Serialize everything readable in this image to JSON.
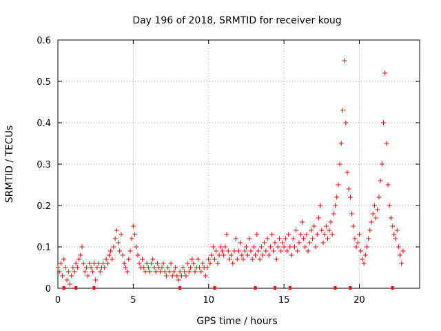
{
  "chart_data": {
    "type": "scatter",
    "title": "Day 196 of 2018, SRMTID for receiver koug",
    "xlabel": "GPS time / hours",
    "ylabel": "SRMTID / TECUs",
    "xlim": [
      0,
      24
    ],
    "ylim": [
      0,
      0.6
    ],
    "xticks": [
      0,
      5,
      10,
      15,
      20
    ],
    "yticks": [
      0,
      0.1,
      0.2,
      0.3,
      0.4,
      0.5,
      0.6
    ],
    "xtick_labels": [
      "0",
      "5",
      "10",
      "15",
      "20"
    ],
    "ytick_labels": [
      "0",
      "0.1",
      "0.2",
      "0.3",
      "0.4",
      "0.5",
      "0.6"
    ],
    "grid": true,
    "marker": "+",
    "color": "#ff0000",
    "series": [
      {
        "name": "SRMTID",
        "points": [
          [
            0.0,
            0.05
          ],
          [
            0.1,
            0.04
          ],
          [
            0.2,
            0.06
          ],
          [
            0.3,
            0.03
          ],
          [
            0.4,
            0.07
          ],
          [
            0.5,
            0.05
          ],
          [
            0.6,
            0.02
          ],
          [
            0.7,
            0.04
          ],
          [
            0.8,
            0.01
          ],
          [
            0.9,
            0.03
          ],
          [
            1.0,
            0.05
          ],
          [
            1.1,
            0.04
          ],
          [
            1.2,
            0.06
          ],
          [
            1.3,
            0.05
          ],
          [
            1.4,
            0.07
          ],
          [
            1.5,
            0.08
          ],
          [
            1.6,
            0.1
          ],
          [
            1.7,
            0.06
          ],
          [
            1.8,
            0.04
          ],
          [
            1.9,
            0.05
          ],
          [
            2.0,
            0.03
          ],
          [
            2.1,
            0.06
          ],
          [
            2.2,
            0.05
          ],
          [
            2.3,
            0.04
          ],
          [
            2.4,
            0.06
          ],
          [
            2.5,
            0.02
          ],
          [
            2.6,
            0.05
          ],
          [
            2.7,
            0.06
          ],
          [
            2.8,
            0.04
          ],
          [
            2.9,
            0.05
          ],
          [
            3.0,
            0.06
          ],
          [
            3.1,
            0.05
          ],
          [
            3.2,
            0.07
          ],
          [
            3.3,
            0.06
          ],
          [
            3.4,
            0.08
          ],
          [
            3.5,
            0.09
          ],
          [
            3.6,
            0.07
          ],
          [
            3.7,
            0.1
          ],
          [
            3.8,
            0.12
          ],
          [
            3.9,
            0.14
          ],
          [
            4.0,
            0.11
          ],
          [
            4.1,
            0.09
          ],
          [
            4.2,
            0.13
          ],
          [
            4.3,
            0.08
          ],
          [
            4.4,
            0.06
          ],
          [
            4.5,
            0.05
          ],
          [
            4.6,
            0.04
          ],
          [
            4.7,
            0.07
          ],
          [
            4.8,
            0.09
          ],
          [
            4.9,
            0.12
          ],
          [
            5.0,
            0.15
          ],
          [
            5.1,
            0.13
          ],
          [
            5.2,
            0.1
          ],
          [
            5.3,
            0.08
          ],
          [
            5.4,
            0.06
          ],
          [
            5.5,
            0.05
          ],
          [
            5.6,
            0.07
          ],
          [
            5.7,
            0.05
          ],
          [
            5.8,
            0.04
          ],
          [
            5.9,
            0.06
          ],
          [
            6.0,
            0.05
          ],
          [
            6.1,
            0.04
          ],
          [
            6.2,
            0.06
          ],
          [
            6.3,
            0.07
          ],
          [
            6.4,
            0.05
          ],
          [
            6.5,
            0.04
          ],
          [
            6.6,
            0.06
          ],
          [
            6.7,
            0.05
          ],
          [
            6.8,
            0.04
          ],
          [
            6.9,
            0.05
          ],
          [
            7.0,
            0.06
          ],
          [
            7.1,
            0.04
          ],
          [
            7.2,
            0.03
          ],
          [
            7.3,
            0.05
          ],
          [
            7.4,
            0.04
          ],
          [
            7.5,
            0.06
          ],
          [
            7.6,
            0.03
          ],
          [
            7.7,
            0.04
          ],
          [
            7.8,
            0.05
          ],
          [
            7.9,
            0.03
          ],
          [
            8.0,
            0.02
          ],
          [
            8.1,
            0.04
          ],
          [
            8.2,
            0.03
          ],
          [
            8.3,
            0.05
          ],
          [
            8.4,
            0.04
          ],
          [
            8.5,
            0.03
          ],
          [
            8.6,
            0.06
          ],
          [
            8.7,
            0.04
          ],
          [
            8.8,
            0.05
          ],
          [
            8.9,
            0.07
          ],
          [
            9.0,
            0.06
          ],
          [
            9.1,
            0.04
          ],
          [
            9.2,
            0.05
          ],
          [
            9.3,
            0.07
          ],
          [
            9.4,
            0.05
          ],
          [
            9.5,
            0.04
          ],
          [
            9.6,
            0.06
          ],
          [
            9.7,
            0.05
          ],
          [
            9.8,
            0.03
          ],
          [
            9.9,
            0.05
          ],
          [
            10.0,
            0.07
          ],
          [
            10.1,
            0.06
          ],
          [
            10.2,
            0.08
          ],
          [
            10.3,
            0.1
          ],
          [
            10.4,
            0.07
          ],
          [
            10.5,
            0.09
          ],
          [
            10.6,
            0.06
          ],
          [
            10.7,
            0.08
          ],
          [
            10.8,
            0.1
          ],
          [
            10.9,
            0.09
          ],
          [
            11.0,
            0.08
          ],
          [
            11.1,
            0.1
          ],
          [
            11.2,
            0.13
          ],
          [
            11.3,
            0.09
          ],
          [
            11.4,
            0.07
          ],
          [
            11.5,
            0.08
          ],
          [
            11.6,
            0.06
          ],
          [
            11.7,
            0.09
          ],
          [
            11.8,
            0.12
          ],
          [
            11.9,
            0.07
          ],
          [
            12.0,
            0.09
          ],
          [
            12.1,
            0.11
          ],
          [
            12.2,
            0.08
          ],
          [
            12.3,
            0.07
          ],
          [
            12.4,
            0.09
          ],
          [
            12.5,
            0.1
          ],
          [
            12.6,
            0.08
          ],
          [
            12.7,
            0.12
          ],
          [
            12.8,
            0.09
          ],
          [
            12.9,
            0.07
          ],
          [
            13.0,
            0.1
          ],
          [
            13.1,
            0.08
          ],
          [
            13.2,
            0.13
          ],
          [
            13.3,
            0.09
          ],
          [
            13.4,
            0.07
          ],
          [
            13.5,
            0.1
          ],
          [
            13.6,
            0.08
          ],
          [
            13.7,
            0.11
          ],
          [
            13.8,
            0.09
          ],
          [
            13.9,
            0.12
          ],
          [
            14.0,
            0.08
          ],
          [
            14.1,
            0.1
          ],
          [
            14.2,
            0.13
          ],
          [
            14.3,
            0.09
          ],
          [
            14.4,
            0.11
          ],
          [
            14.5,
            0.07
          ],
          [
            14.6,
            0.1
          ],
          [
            14.7,
            0.12
          ],
          [
            14.8,
            0.09
          ],
          [
            14.9,
            0.11
          ],
          [
            15.0,
            0.1
          ],
          [
            15.1,
            0.12
          ],
          [
            15.2,
            0.09
          ],
          [
            15.3,
            0.13
          ],
          [
            15.4,
            0.1
          ],
          [
            15.5,
            0.08
          ],
          [
            15.6,
            0.12
          ],
          [
            15.7,
            0.1
          ],
          [
            15.8,
            0.14
          ],
          [
            15.9,
            0.09
          ],
          [
            16.0,
            0.11
          ],
          [
            16.1,
            0.13
          ],
          [
            16.2,
            0.16
          ],
          [
            16.3,
            0.12
          ],
          [
            16.4,
            0.1
          ],
          [
            16.5,
            0.13
          ],
          [
            16.6,
            0.09
          ],
          [
            16.7,
            0.11
          ],
          [
            16.8,
            0.14
          ],
          [
            16.9,
            0.12
          ],
          [
            17.0,
            0.15
          ],
          [
            17.1,
            0.1
          ],
          [
            17.2,
            0.13
          ],
          [
            17.3,
            0.17
          ],
          [
            17.4,
            0.2
          ],
          [
            17.5,
            0.14
          ],
          [
            17.6,
            0.11
          ],
          [
            17.7,
            0.13
          ],
          [
            17.8,
            0.15
          ],
          [
            17.9,
            0.12
          ],
          [
            18.0,
            0.14
          ],
          [
            18.1,
            0.16
          ],
          [
            18.2,
            0.13
          ],
          [
            18.3,
            0.18
          ],
          [
            18.4,
            0.2
          ],
          [
            18.5,
            0.22
          ],
          [
            18.6,
            0.25
          ],
          [
            18.7,
            0.3
          ],
          [
            18.8,
            0.35
          ],
          [
            18.9,
            0.43
          ],
          [
            19.0,
            0.55
          ],
          [
            19.1,
            0.4
          ],
          [
            19.2,
            0.28
          ],
          [
            19.3,
            0.24
          ],
          [
            19.4,
            0.22
          ],
          [
            19.5,
            0.18
          ],
          [
            19.6,
            0.15
          ],
          [
            19.7,
            0.12
          ],
          [
            19.8,
            0.1
          ],
          [
            19.9,
            0.11
          ],
          [
            20.0,
            0.13
          ],
          [
            20.1,
            0.09
          ],
          [
            20.2,
            0.07
          ],
          [
            20.3,
            0.06
          ],
          [
            20.4,
            0.08
          ],
          [
            20.5,
            0.1
          ],
          [
            20.6,
            0.12
          ],
          [
            20.7,
            0.14
          ],
          [
            20.8,
            0.16
          ],
          [
            20.9,
            0.18
          ],
          [
            21.0,
            0.2
          ],
          [
            21.1,
            0.17
          ],
          [
            21.2,
            0.19
          ],
          [
            21.3,
            0.22
          ],
          [
            21.4,
            0.26
          ],
          [
            21.5,
            0.3
          ],
          [
            21.6,
            0.4
          ],
          [
            21.7,
            0.52
          ],
          [
            21.8,
            0.35
          ],
          [
            21.9,
            0.25
          ],
          [
            22.0,
            0.2
          ],
          [
            22.1,
            0.17
          ],
          [
            22.2,
            0.15
          ],
          [
            22.3,
            0.13
          ],
          [
            22.4,
            0.12
          ],
          [
            22.5,
            0.14
          ],
          [
            22.6,
            0.1
          ],
          [
            22.7,
            0.08
          ],
          [
            22.8,
            0.06
          ],
          [
            22.9,
            0.09
          ]
        ],
        "bottom_marks_x": [
          0.4,
          1.2,
          2.4,
          8.1,
          10.4,
          13.1,
          14.4,
          15.4,
          18.4,
          19.4,
          22.2
        ]
      }
    ]
  }
}
